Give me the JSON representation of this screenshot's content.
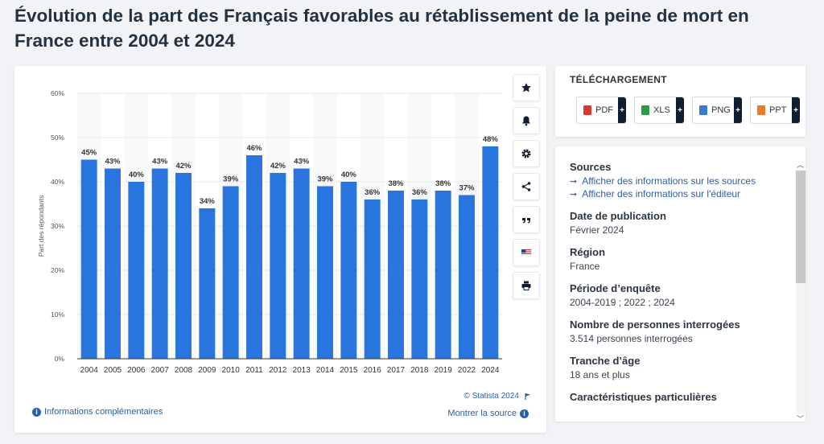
{
  "page": {
    "title": "Évolution de la part des Français favorables au rétablissement de la peine de mort en France entre 2004 et 2024"
  },
  "chart_data": {
    "type": "bar",
    "categories": [
      "2004",
      "2005",
      "2006",
      "2007",
      "2008",
      "2009",
      "2010",
      "2011",
      "2012",
      "2013",
      "2014",
      "2015",
      "2016",
      "2017",
      "2018",
      "2019",
      "2022",
      "2024"
    ],
    "values": [
      45,
      43,
      40,
      43,
      42,
      34,
      39,
      46,
      42,
      43,
      39,
      40,
      36,
      38,
      36,
      38,
      37,
      48
    ],
    "value_labels": [
      "45%",
      "43%",
      "40%",
      "43%",
      "42%",
      "34%",
      "39%",
      "46%",
      "42%",
      "43%",
      "39%",
      "40%",
      "36%",
      "38%",
      "36%",
      "38%",
      "37%",
      "48%"
    ],
    "ylabel": "Part des répondants",
    "ylim": [
      0,
      60
    ],
    "yticks": [
      0,
      10,
      20,
      30,
      40,
      50,
      60
    ],
    "ytick_labels": [
      "0%",
      "10%",
      "20%",
      "30%",
      "40%",
      "50%",
      "60%"
    ],
    "bar_color": "#2876dd",
    "grid": true
  },
  "chart_footer": {
    "copyright": "© Statista 2024",
    "info_link": "Informations complémentaires",
    "source_link": "Montrer la source"
  },
  "toolbar": {
    "icons": [
      "star-icon",
      "bell-icon",
      "gear-icon",
      "share-icon",
      "quote-icon",
      "flag-icon",
      "print-icon"
    ]
  },
  "download": {
    "title": "TÉLÉCHARGEMENT",
    "formats": [
      {
        "label": "PDF",
        "color": "#d9382f"
      },
      {
        "label": "XLS",
        "color": "#2e9b47"
      },
      {
        "label": "PNG",
        "color": "#3a7bd5"
      },
      {
        "label": "PPT",
        "color": "#e87a2a"
      }
    ],
    "plus": "+"
  },
  "info": {
    "sources_heading": "Sources",
    "source_links": [
      "Afficher des informations sur les sources",
      "Afficher des informations sur l'éditeur"
    ],
    "fields": [
      {
        "label": "Date de publication",
        "value": "Février 2024"
      },
      {
        "label": "Région",
        "value": "France"
      },
      {
        "label": "Période d’enquête",
        "value": "2004-2019 ; 2022 ; 2024"
      },
      {
        "label": "Nombre de personnes interrogées",
        "value": "3.514 personnes interrogées"
      },
      {
        "label": "Tranche d’âge",
        "value": "18 ans et plus"
      },
      {
        "label": "Caractéristiques particulières",
        "value": ""
      }
    ]
  }
}
